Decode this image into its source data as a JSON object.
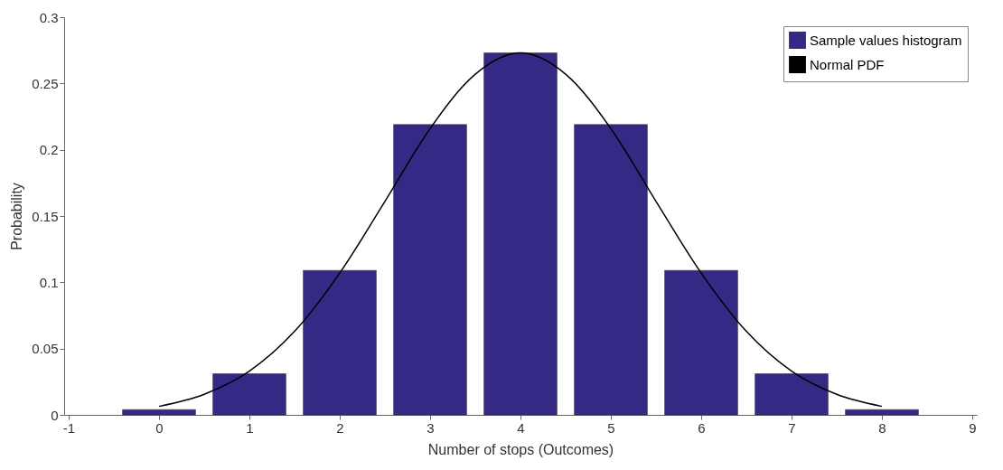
{
  "chart_data": {
    "type": "bar",
    "xlabel": "Number of stops (Outcomes)",
    "ylabel": "Probability",
    "x": [
      0,
      1,
      2,
      3,
      4,
      5,
      6,
      7,
      8
    ],
    "series": [
      {
        "name": "Sample values histogram",
        "color": "#342a85",
        "values": [
          0.004,
          0.031,
          0.109,
          0.219,
          0.273,
          0.219,
          0.109,
          0.031,
          0.004
        ]
      },
      {
        "name": "Normal PDF",
        "type": "line",
        "color": "#000000",
        "x": [
          0,
          0.5,
          1,
          1.5,
          2,
          2.5,
          3,
          3.5,
          4,
          4.5,
          5,
          5.5,
          6,
          6.5,
          7,
          7.5,
          8
        ],
        "values": [
          0.0064,
          0.0155,
          0.033,
          0.063,
          0.107,
          0.161,
          0.216,
          0.257,
          0.273,
          0.257,
          0.216,
          0.161,
          0.107,
          0.063,
          0.033,
          0.0155,
          0.0064
        ]
      }
    ],
    "xlim": [
      -1,
      9
    ],
    "xticks": [
      -1,
      0,
      1,
      2,
      3,
      4,
      5,
      6,
      7,
      8,
      9
    ],
    "ylim": [
      0,
      0.3
    ],
    "yticks": [
      0,
      0.05,
      0.1,
      0.15,
      0.2,
      0.25,
      0.3
    ],
    "grid": false,
    "legend": "top right"
  }
}
